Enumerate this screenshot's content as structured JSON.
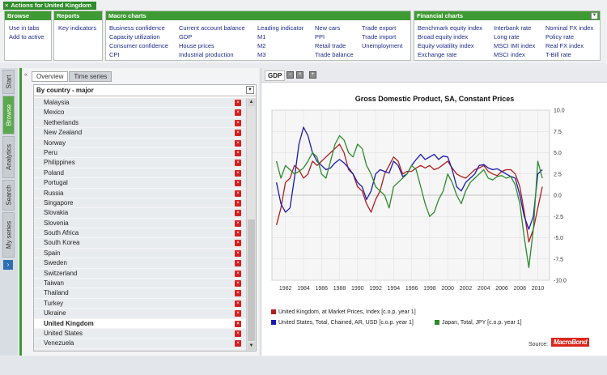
{
  "actions": {
    "title": "Actions for United Kingdom",
    "close_glyph": "×",
    "groups": {
      "browse": {
        "header": "Browse",
        "items": [
          "Use in tabs",
          "Add to active"
        ]
      },
      "reports": {
        "header": "Reports",
        "items": [
          "Key indicators"
        ]
      },
      "macro": {
        "header": "Macro charts",
        "columns": [
          [
            "Business confidence",
            "Capacity utilization",
            "Consumer confidence",
            "CPI"
          ],
          [
            "Current account balance",
            "GDP",
            "House prices",
            "Industrial production"
          ],
          [
            "Leading indicator",
            "M1",
            "M2",
            "M3"
          ],
          [
            "New cars",
            "PPI",
            "Retail trade",
            "Trade balance"
          ],
          [
            "Trade export",
            "Trade import",
            "Unemployment"
          ]
        ]
      },
      "financial": {
        "header": "Financial charts",
        "columns": [
          [
            "Benchmark equity index",
            "Broad equity index",
            "Equity volatility index",
            "Exchange rate"
          ],
          [
            "Interbank rate",
            "Long rate",
            "MSCI IMI index",
            "MSCI index"
          ],
          [
            "Nominal FX index",
            "Policy rate",
            "Real FX index",
            "T-Bill rate"
          ]
        ]
      }
    }
  },
  "sidetabs": [
    "Start",
    "Browse",
    "Analytics",
    "Search",
    "My series"
  ],
  "left_panel": {
    "tabs": [
      "Overview",
      "Time series"
    ],
    "list_header": "By country - major",
    "countries": [
      "Malaysia",
      "Mexico",
      "Netherlands",
      "New Zealand",
      "Norway",
      "Peru",
      "Philippines",
      "Poland",
      "Portugal",
      "Russia",
      "Singapore",
      "Slovakia",
      "Slovenia",
      "South Africa",
      "South Korea",
      "Spain",
      "Sweden",
      "Switzerland",
      "Taiwan",
      "Thailand",
      "Turkey",
      "Ukraine",
      "United Kingdom",
      "United States",
      "Venezuela"
    ],
    "selected": "United Kingdom"
  },
  "chart_panel": {
    "tab_label": "GDP",
    "source_label": "Source:",
    "logo_text": "MacroBond"
  },
  "colors": {
    "accent": "#3e9b34",
    "uk": "#b01e1e",
    "us": "#1a1ab0",
    "japan": "#2c8c2c"
  },
  "chart_data": {
    "type": "line",
    "title": "Gross Domestic Product, SA, Constant Prices",
    "xlabel": "",
    "ylabel": "",
    "xlim": [
      1980.5,
      2011.3
    ],
    "ylim": [
      -10,
      10
    ],
    "y_ticks": [
      10.0,
      7.5,
      5.0,
      2.5,
      0.0,
      -2.5,
      -5.0,
      -7.5,
      -10.0
    ],
    "y_tick_labels": [
      "10.0",
      "7.5",
      "5.0",
      "2.5",
      "0.0",
      "-2.5",
      "-5.0",
      "-7.5",
      "-10.0"
    ],
    "x_ticks": [
      1982,
      1984,
      1986,
      1988,
      1990,
      1992,
      1994,
      1996,
      1998,
      2000,
      2002,
      2004,
      2006,
      2008,
      2010
    ],
    "grid": true,
    "legend_position": "bottom",
    "series": [
      {
        "name": "United Kingdom, at Market Prices, Index [c.o.p. year 1]",
        "color": "#b01e1e",
        "x": [
          1981,
          1981.5,
          1982,
          1982.5,
          1983,
          1983.5,
          1984,
          1984.5,
          1985,
          1985.5,
          1986,
          1986.5,
          1987,
          1987.5,
          1988,
          1988.5,
          1989,
          1989.5,
          1990,
          1990.5,
          1991,
          1991.5,
          1992,
          1992.5,
          1993,
          1993.5,
          1994,
          1994.5,
          1995,
          1995.5,
          1996,
          1996.5,
          1997,
          1997.5,
          1998,
          1998.5,
          1999,
          1999.5,
          2000,
          2000.5,
          2001,
          2001.5,
          2002,
          2002.5,
          2003,
          2003.5,
          2004,
          2004.5,
          2005,
          2005.5,
          2006,
          2006.5,
          2007,
          2007.5,
          2008,
          2008.5,
          2009,
          2009.5,
          2010,
          2010.5
        ],
        "y": [
          -3.5,
          -1.5,
          1.5,
          2.0,
          3.5,
          3.0,
          2.0,
          2.5,
          4.0,
          3.5,
          4.0,
          4.5,
          5.0,
          5.5,
          6.0,
          5.0,
          3.0,
          2.5,
          1.0,
          0.5,
          -1.0,
          -2.0,
          -0.5,
          0.5,
          2.5,
          3.5,
          4.5,
          4.0,
          2.5,
          2.8,
          2.8,
          3.2,
          3.5,
          3.2,
          3.5,
          3.0,
          3.2,
          3.6,
          4.0,
          3.2,
          2.5,
          2.2,
          2.0,
          2.5,
          3.0,
          3.2,
          3.5,
          2.8,
          2.5,
          2.3,
          2.8,
          3.0,
          3.0,
          2.5,
          1.0,
          -2.0,
          -5.5,
          -4.0,
          -1.5,
          1.0
        ]
      },
      {
        "name": "United States, Total, Chained, AR, USD [c.o.p. year 1]",
        "color": "#1a1ab0",
        "x": [
          1981,
          1981.5,
          1982,
          1982.5,
          1983,
          1983.5,
          1984,
          1984.5,
          1985,
          1985.5,
          1986,
          1986.5,
          1987,
          1987.5,
          1988,
          1988.5,
          1989,
          1989.5,
          1990,
          1990.5,
          1991,
          1991.5,
          1992,
          1992.5,
          1993,
          1993.5,
          1994,
          1994.5,
          1995,
          1995.5,
          1996,
          1996.5,
          1997,
          1997.5,
          1998,
          1998.5,
          1999,
          1999.5,
          2000,
          2000.5,
          2001,
          2001.5,
          2002,
          2002.5,
          2003,
          2003.5,
          2004,
          2004.5,
          2005,
          2005.5,
          2006,
          2006.5,
          2007,
          2007.5,
          2008,
          2008.5,
          2009,
          2009.5,
          2010,
          2010.5
        ],
        "y": [
          1.5,
          -1.0,
          -2.0,
          -1.5,
          2.0,
          6.0,
          8.0,
          7.0,
          5.0,
          4.0,
          3.5,
          3.0,
          3.2,
          3.8,
          4.2,
          3.8,
          3.2,
          2.5,
          1.5,
          1.0,
          -0.5,
          0.5,
          2.5,
          3.0,
          2.8,
          2.6,
          4.0,
          3.5,
          2.2,
          2.5,
          3.5,
          4.2,
          4.8,
          4.2,
          4.5,
          4.8,
          4.2,
          4.6,
          4.5,
          3.0,
          1.0,
          0.5,
          1.5,
          2.0,
          2.5,
          3.5,
          3.6,
          3.2,
          3.0,
          3.1,
          2.8,
          2.5,
          2.2,
          2.0,
          0.0,
          -2.5,
          -4.0,
          -2.5,
          2.5,
          3.0
        ]
      },
      {
        "name": "Japan, Total, JPY [c.o.p. year 1]",
        "color": "#2c8c2c",
        "x": [
          1981,
          1981.5,
          1982,
          1982.5,
          1983,
          1983.5,
          1984,
          1984.5,
          1985,
          1985.5,
          1986,
          1986.5,
          1987,
          1987.5,
          1988,
          1988.5,
          1989,
          1989.5,
          1990,
          1990.5,
          1991,
          1991.5,
          1992,
          1992.5,
          1993,
          1993.5,
          1994,
          1994.5,
          1995,
          1995.5,
          1996,
          1996.5,
          1997,
          1997.5,
          1998,
          1998.5,
          1999,
          1999.5,
          2000,
          2000.5,
          2001,
          2001.5,
          2002,
          2002.5,
          2003,
          2003.5,
          2004,
          2004.5,
          2005,
          2005.5,
          2006,
          2006.5,
          2007,
          2007.5,
          2008,
          2008.5,
          2009,
          2009.5,
          2010,
          2010.5
        ],
        "y": [
          4.0,
          2.0,
          3.5,
          3.0,
          2.5,
          2.8,
          3.2,
          4.0,
          5.0,
          4.5,
          2.5,
          2.0,
          4.0,
          6.0,
          7.0,
          6.5,
          5.0,
          4.5,
          6.0,
          5.5,
          3.5,
          2.5,
          1.0,
          0.5,
          0.0,
          -1.5,
          1.0,
          1.5,
          2.0,
          2.5,
          3.5,
          3.0,
          1.0,
          -1.0,
          -2.5,
          -2.0,
          -0.5,
          0.5,
          2.5,
          1.5,
          0.0,
          -1.0,
          0.5,
          1.5,
          2.0,
          2.5,
          3.0,
          2.0,
          1.8,
          2.2,
          2.3,
          2.0,
          2.2,
          1.2,
          -1.0,
          -5.0,
          -8.5,
          -4.0,
          4.0,
          2.0
        ]
      }
    ]
  }
}
